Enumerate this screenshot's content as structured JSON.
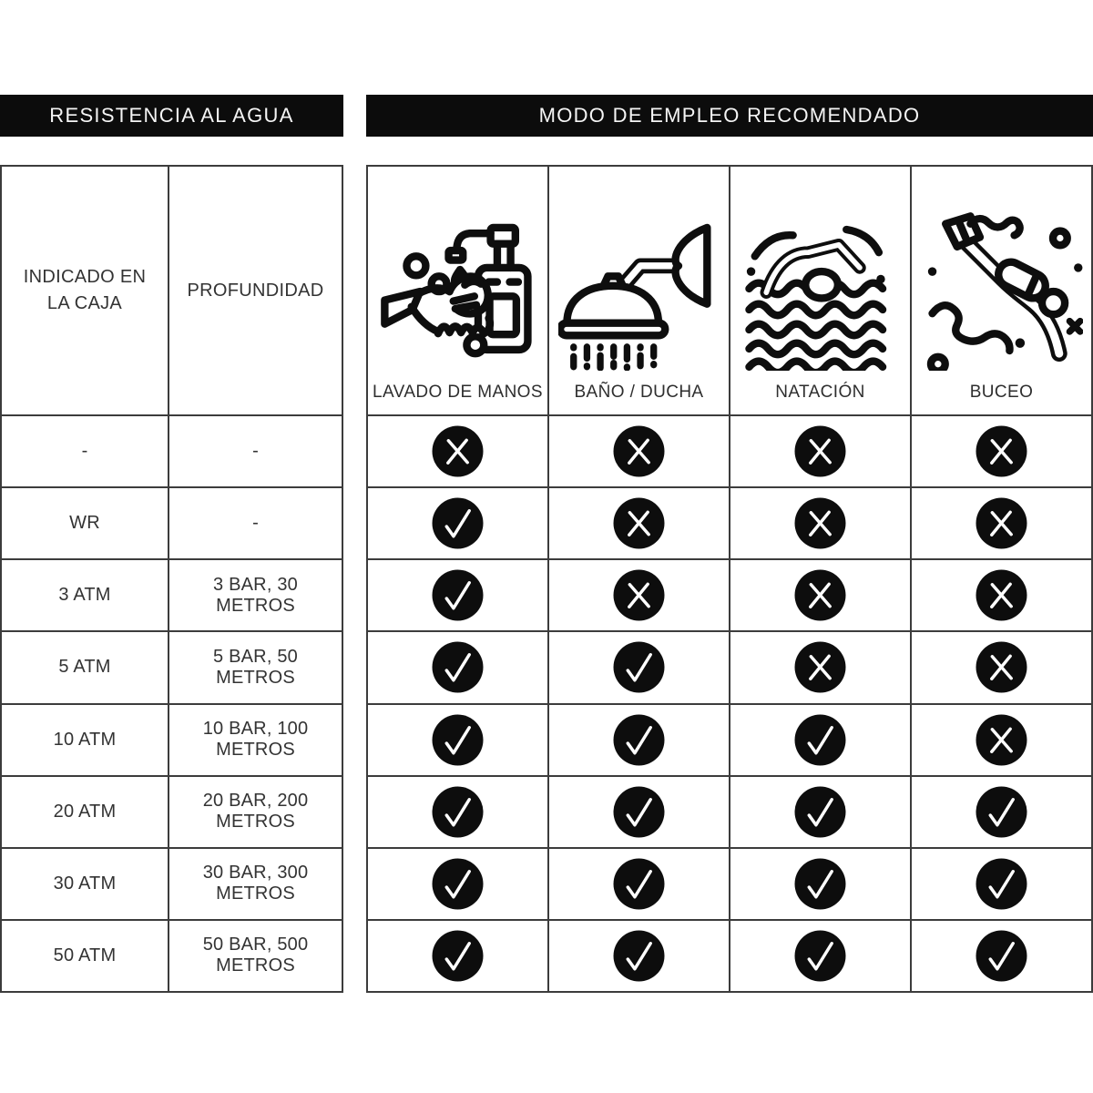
{
  "left_section": {
    "header": "RESISTENCIA AL AGUA",
    "columns": [
      "INDICADO EN LA CAJA",
      "PROFUNDIDAD"
    ],
    "rows": [
      {
        "box": "-",
        "depth": "-"
      },
      {
        "box": "WR",
        "depth": "-"
      },
      {
        "box": "3 ATM",
        "depth": "3 BAR, 30 METROS"
      },
      {
        "box": "5 ATM",
        "depth": "5 BAR, 50 METROS"
      },
      {
        "box": "10 ATM",
        "depth": "10 BAR, 100 METROS"
      },
      {
        "box": "20 ATM",
        "depth": "20 BAR, 200 METROS"
      },
      {
        "box": "30 ATM",
        "depth": "30 BAR, 300 METROS"
      },
      {
        "box": "50 ATM",
        "depth": "50 BAR, 500 METROS"
      }
    ]
  },
  "right_section": {
    "header": "MODO DE EMPLEO RECOMENDADO",
    "activities": [
      {
        "label": "LAVADO DE MANOS",
        "icon": "handwash-icon"
      },
      {
        "label": "BAÑO / DUCHA",
        "icon": "shower-icon"
      },
      {
        "label": "NATACIÓN",
        "icon": "swimming-icon"
      },
      {
        "label": "BUCEO",
        "icon": "diving-icon"
      }
    ],
    "usage": [
      [
        "cross",
        "cross",
        "cross",
        "cross"
      ],
      [
        "check",
        "cross",
        "cross",
        "cross"
      ],
      [
        "check",
        "cross",
        "cross",
        "cross"
      ],
      [
        "check",
        "check",
        "cross",
        "cross"
      ],
      [
        "check",
        "check",
        "check",
        "cross"
      ],
      [
        "check",
        "check",
        "check",
        "check"
      ],
      [
        "check",
        "check",
        "check",
        "check"
      ],
      [
        "check",
        "check",
        "check",
        "check"
      ]
    ]
  },
  "colors": {
    "ink": "#0e0e0e",
    "header_bg": "#0c0c0c",
    "header_text": "#f5f5f5",
    "grid_border": "#3c3c3c",
    "mark_circle": "#0d0d0d",
    "mark_glyph": "#ffffff"
  }
}
